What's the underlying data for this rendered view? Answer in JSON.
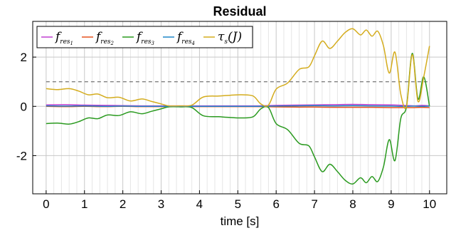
{
  "chart_data": {
    "type": "line",
    "title": "Residual",
    "xlabel": "time [s]",
    "ylabel": "",
    "xlim": [
      -0.35,
      10.45
    ],
    "ylim": [
      -3.55,
      3.45
    ],
    "xticks": [
      0,
      1,
      2,
      3,
      4,
      5,
      6,
      7,
      8,
      9,
      10
    ],
    "yticks": [
      -2,
      0,
      2
    ],
    "grid": true,
    "legend_position": "top-left",
    "threshold": {
      "y": 1.0,
      "style": "dashed",
      "color": "#808080"
    },
    "series": [
      {
        "name": "f_res1",
        "legend_main": "f",
        "legend_sub": "res",
        "legend_subsub": "1",
        "color": "#c03fd0",
        "x": [
          0,
          0.5,
          1,
          1.5,
          2,
          2.5,
          3,
          3.5,
          4,
          4.5,
          5,
          5.5,
          6,
          6.5,
          7,
          7.5,
          8,
          8.5,
          9,
          9.3,
          9.6,
          9.8,
          10
        ],
        "y": [
          0.06,
          0.07,
          0.05,
          0.04,
          0.03,
          0.02,
          0.02,
          0.02,
          0.02,
          0.02,
          0.02,
          0.02,
          0.04,
          0.05,
          0.06,
          0.07,
          0.08,
          0.07,
          0.06,
          0.04,
          0.02,
          0.04,
          0.02
        ]
      },
      {
        "name": "f_res2",
        "legend_main": "f",
        "legend_sub": "res",
        "legend_subsub": "2",
        "color": "#e5521f",
        "x": [
          0,
          0.5,
          1,
          1.5,
          2,
          2.5,
          3,
          3.5,
          4,
          4.5,
          5,
          5.5,
          6,
          6.5,
          7,
          7.5,
          8,
          8.5,
          9,
          9.3,
          9.6,
          9.8,
          10
        ],
        "y": [
          0.0,
          -0.01,
          0.0,
          -0.01,
          0.0,
          -0.01,
          -0.01,
          -0.01,
          -0.01,
          -0.01,
          -0.01,
          -0.01,
          -0.02,
          -0.03,
          -0.03,
          -0.04,
          -0.04,
          -0.04,
          -0.05,
          -0.05,
          -0.05,
          -0.04,
          -0.05
        ]
      },
      {
        "name": "f_res3",
        "legend_main": "f",
        "legend_sub": "res",
        "legend_subsub": "3",
        "color": "#2a9a1f",
        "x": [
          0,
          0.3,
          0.6,
          0.85,
          1.1,
          1.35,
          1.6,
          1.9,
          2.2,
          2.5,
          2.75,
          3.0,
          3.2,
          3.5,
          3.8,
          4.1,
          4.5,
          4.8,
          5.1,
          5.4,
          5.6,
          5.8,
          6.0,
          6.3,
          6.6,
          6.85,
          7.0,
          7.2,
          7.4,
          7.6,
          7.8,
          8.0,
          8.2,
          8.35,
          8.5,
          8.65,
          8.8,
          8.95,
          9.1,
          9.25,
          9.4,
          9.55,
          9.7,
          9.85,
          10.0
        ],
        "y": [
          -0.7,
          -0.68,
          -0.72,
          -0.62,
          -0.47,
          -0.5,
          -0.35,
          -0.37,
          -0.22,
          -0.3,
          -0.2,
          -0.1,
          -0.02,
          -0.02,
          -0.05,
          -0.38,
          -0.42,
          -0.45,
          -0.47,
          -0.42,
          -0.1,
          -0.05,
          -0.7,
          -0.95,
          -1.5,
          -1.6,
          -2.05,
          -2.65,
          -2.35,
          -2.65,
          -3.0,
          -3.15,
          -2.9,
          -3.1,
          -2.85,
          -3.05,
          -2.45,
          -1.35,
          -2.2,
          -0.5,
          0.0,
          2.15,
          0.3,
          1.2,
          0.0
        ]
      },
      {
        "name": "f_res4",
        "legend_main": "f",
        "legend_sub": "res",
        "legend_subsub": "4",
        "color": "#1f87c8",
        "x": [
          0,
          0.5,
          1,
          1.5,
          2,
          2.5,
          3,
          3.5,
          4,
          4.5,
          5,
          5.5,
          6,
          6.5,
          7,
          7.5,
          8,
          8.5,
          9,
          9.3,
          9.6,
          9.8,
          10
        ],
        "y": [
          0.02,
          0.01,
          0.02,
          0.0,
          0.01,
          0.0,
          0.0,
          0.0,
          0.0,
          0.0,
          0.0,
          0.0,
          0.01,
          0.02,
          0.03,
          0.02,
          0.03,
          0.02,
          0.01,
          0.0,
          0.01,
          0.0,
          0.01
        ]
      },
      {
        "name": "tau_s(J)",
        "legend_main": "τ",
        "legend_sub": "s",
        "legend_tail": "(J)",
        "color": "#d4ac1d",
        "x": [
          0,
          0.3,
          0.6,
          0.85,
          1.1,
          1.35,
          1.6,
          1.9,
          2.2,
          2.5,
          2.75,
          3.0,
          3.2,
          3.5,
          3.8,
          4.1,
          4.5,
          4.8,
          5.1,
          5.4,
          5.6,
          5.8,
          6.0,
          6.3,
          6.6,
          6.85,
          7.0,
          7.2,
          7.4,
          7.6,
          7.8,
          8.0,
          8.2,
          8.35,
          8.5,
          8.65,
          8.8,
          8.95,
          9.1,
          9.25,
          9.4,
          9.55,
          9.7,
          9.85,
          10.0
        ],
        "y": [
          0.72,
          0.68,
          0.72,
          0.62,
          0.47,
          0.5,
          0.35,
          0.37,
          0.22,
          0.3,
          0.2,
          0.1,
          0.02,
          0.02,
          0.05,
          0.38,
          0.42,
          0.45,
          0.47,
          0.42,
          0.1,
          0.05,
          0.7,
          0.95,
          1.5,
          1.6,
          2.05,
          2.65,
          2.35,
          2.65,
          3.0,
          3.15,
          2.9,
          3.1,
          2.85,
          3.05,
          2.45,
          1.35,
          2.2,
          0.5,
          0.0,
          2.1,
          0.2,
          1.2,
          2.45
        ]
      }
    ]
  }
}
